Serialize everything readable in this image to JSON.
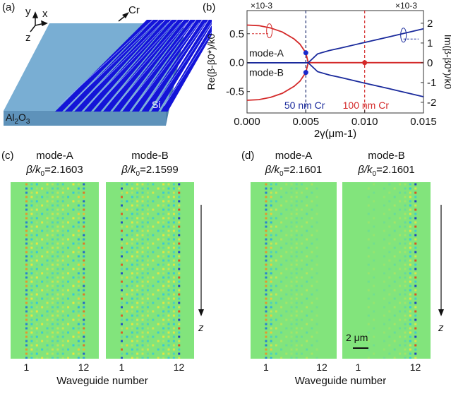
{
  "panel_a": {
    "label": "(a)",
    "axis_x": "x",
    "axis_y": "y",
    "axis_z": "z",
    "cr_label": "Cr",
    "si_label": "Si",
    "substrate_label": "Al2O3",
    "substrate_color": "#6fa3c9",
    "waveguide_color": "#1414d8",
    "waveguide_count": 12
  },
  "panel_b": {
    "label": "(b)",
    "left_multiplier": "×10-3",
    "right_multiplier": "×10-3",
    "annotations": {
      "mode_a": "mode-A",
      "mode_b": "mode-B",
      "cr50": "50 nm Cr",
      "cr100": "100 nm Cr"
    }
  },
  "chart_data": {
    "type": "line",
    "xlabel": "2γ(μm-1)",
    "ylabel_left": "Re(β-β0*)/k0",
    "ylabel_right": "Im(β-β0*)/k0",
    "xlim": [
      0,
      0.015
    ],
    "ylim_left": [
      -0.87,
      0.9
    ],
    "ylim_right": [
      -2.54,
      2.64
    ],
    "x_ticks": [
      "0.000",
      "0.005",
      "0.010",
      "0.015"
    ],
    "x_tick_values": [
      0,
      0.005,
      0.01,
      0.015
    ],
    "left_ticks": [
      "0.5",
      "0.0",
      "-0.5"
    ],
    "left_tick_values": [
      0.5,
      0,
      -0.5
    ],
    "right_ticks": [
      "2",
      "1",
      "0",
      "-1",
      "-2"
    ],
    "right_tick_values": [
      2,
      1,
      0,
      -1,
      -2
    ],
    "colors": {
      "real": "#d42a2a",
      "imag": "#1a2a9c"
    },
    "real_branch": {
      "x": [
        0,
        0.001,
        0.002,
        0.003,
        0.004,
        0.0045,
        0.005,
        0.0052,
        0.015
      ],
      "y": [
        0.65,
        0.64,
        0.6,
        0.53,
        0.41,
        0.32,
        0.17,
        0,
        0
      ]
    },
    "imag_branch": {
      "x": [
        0,
        0.0052,
        0.006,
        0.007,
        0.008,
        0.01,
        0.012,
        0.015
      ],
      "y": [
        0,
        0,
        0.45,
        0.62,
        0.75,
        1.03,
        1.3,
        1.72
      ]
    },
    "vlines": [
      {
        "x": 0.005,
        "color": "#1a2a6c"
      },
      {
        "x": 0.01,
        "color": "#d42a2a"
      }
    ],
    "markers": [
      {
        "x": 0.005,
        "y_left": 0.17,
        "color": "#1a2acc"
      },
      {
        "x": 0.005,
        "y_left": -0.17,
        "color": "#1a2acc"
      },
      {
        "x": 0.01,
        "y_left": 0,
        "color": "#d42a2a"
      }
    ]
  },
  "panel_c": {
    "label": "(c)",
    "maps": [
      {
        "title": "mode-A",
        "beta": "=2.1603",
        "amplitudes": [
          1,
          0.5,
          0.45,
          0.4,
          0.35,
          0.35,
          0.35,
          0.35,
          0.4,
          0.45,
          0.55,
          1
        ]
      },
      {
        "title": "mode-B",
        "beta": "=2.1599",
        "amplitudes": [
          0.9,
          0.5,
          0.45,
          0.45,
          0.4,
          0.35,
          0.35,
          0.4,
          0.45,
          0.5,
          0.5,
          1
        ]
      }
    ],
    "tick_first": "1",
    "tick_last": "12",
    "xlabel": "Waveguide number",
    "arrow_label": "z"
  },
  "panel_d": {
    "label": "(d)",
    "maps": [
      {
        "title": "mode-A",
        "beta": "=2.1601",
        "amplitudes": [
          1,
          0.6,
          0.3,
          0.2,
          0.15,
          0.15,
          0.2,
          0.15,
          0.2,
          0.15,
          0.1,
          0.05
        ]
      },
      {
        "title": "mode-B",
        "beta": "=2.1601",
        "amplitudes": [
          0.05,
          0.05,
          0.1,
          0.1,
          0.1,
          0.1,
          0.1,
          0.15,
          0.15,
          0.2,
          0.55,
          1
        ]
      }
    ],
    "tick_first": "1",
    "tick_last": "12",
    "xlabel": "Waveguide number",
    "arrow_label": "z",
    "scale_bar": "2 μm"
  },
  "beta_prefix": "β/k",
  "beta_sub": "0",
  "background_field_color": "#82e47c"
}
